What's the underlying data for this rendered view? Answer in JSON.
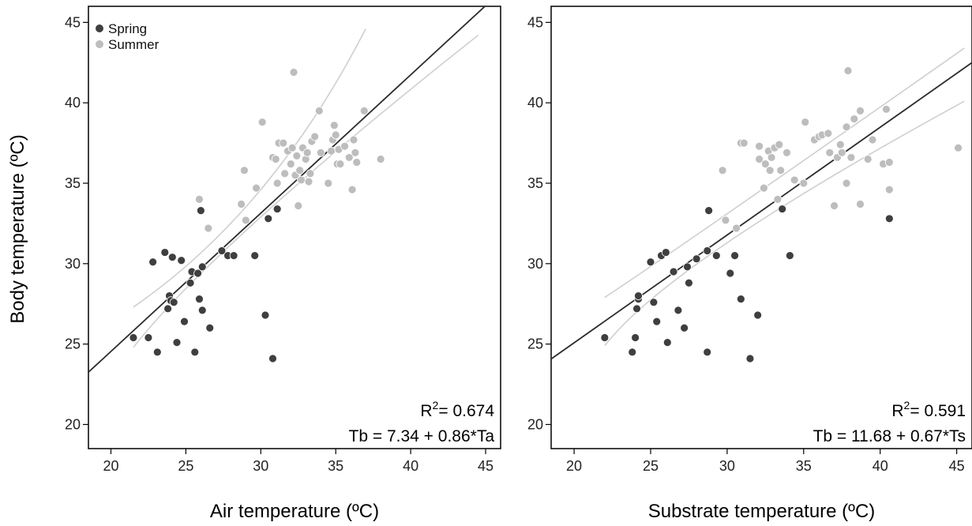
{
  "ylabel": "Body temperature (ºC)",
  "legend": [
    {
      "label": "Spring",
      "color": "#3f3f3f"
    },
    {
      "label": "Summer",
      "color": "#bdbdbd"
    }
  ],
  "colors": {
    "spring": "#3f3f3f",
    "summer": "#bdbdbd",
    "fit": "#2b2b2b",
    "ci": "#cfcfcf"
  },
  "chart_data": [
    {
      "type": "scatter",
      "xlabel": "Air temperature (ºC)",
      "ylabel": "Body temperature (ºC)",
      "xlim": [
        18.5,
        46
      ],
      "ylim": [
        18.5,
        46
      ],
      "xticks": [
        20,
        25,
        30,
        35,
        40,
        45
      ],
      "yticks": [
        20,
        25,
        30,
        35,
        40,
        45
      ],
      "r2_label": "R",
      "r2_sup": "2",
      "r2_value": "= 0.674",
      "equation": "Tb = 7.34 + 0.86*Ta",
      "fit": {
        "intercept": 7.34,
        "slope": 0.86
      },
      "ci_upper": [
        [
          21.5,
          27.3
        ],
        [
          30,
          34.6
        ],
        [
          37,
          44.6
        ]
      ],
      "ci_lower": [
        [
          21.5,
          24.8
        ],
        [
          30,
          32.9
        ],
        [
          44.5,
          44.2
        ]
      ],
      "series": [
        {
          "name": "Spring",
          "points": [
            [
              21.5,
              25.4
            ],
            [
              22.5,
              25.4
            ],
            [
              22.8,
              30.1
            ],
            [
              23.1,
              24.5
            ],
            [
              23.6,
              30.7
            ],
            [
              23.8,
              27.2
            ],
            [
              23.9,
              28
            ],
            [
              24,
              27.7
            ],
            [
              24.1,
              30.4
            ],
            [
              24.2,
              27.6
            ],
            [
              24.4,
              25.1
            ],
            [
              24.7,
              30.2
            ],
            [
              24.9,
              26.4
            ],
            [
              25.3,
              28.8
            ],
            [
              25.4,
              29.5
            ],
            [
              25.6,
              24.5
            ],
            [
              25.8,
              29.4
            ],
            [
              25.9,
              27.8
            ],
            [
              26,
              33.3
            ],
            [
              26.1,
              27.1
            ],
            [
              26.1,
              29.8
            ],
            [
              26.6,
              26
            ],
            [
              27.4,
              30.8
            ],
            [
              27.8,
              30.5
            ],
            [
              28.2,
              30.5
            ],
            [
              29.6,
              30.5
            ],
            [
              30.3,
              26.8
            ],
            [
              30.5,
              32.8
            ],
            [
              30.8,
              24.1
            ],
            [
              31.1,
              33.4
            ]
          ]
        },
        {
          "name": "Summer",
          "points": [
            [
              25.9,
              34
            ],
            [
              26.5,
              32.2
            ],
            [
              28.7,
              33.7
            ],
            [
              28.9,
              35.8
            ],
            [
              29,
              32.7
            ],
            [
              29.7,
              34.7
            ],
            [
              30.1,
              38.8
            ],
            [
              30.8,
              36.6
            ],
            [
              31,
              36.5
            ],
            [
              31.1,
              35
            ],
            [
              31.2,
              37.5
            ],
            [
              31.5,
              37.5
            ],
            [
              31.6,
              35.6
            ],
            [
              31.8,
              37
            ],
            [
              32,
              36.2
            ],
            [
              32.1,
              37.2
            ],
            [
              32.2,
              41.9
            ],
            [
              32.3,
              35.5
            ],
            [
              32.4,
              36.7
            ],
            [
              32.5,
              33.6
            ],
            [
              32.6,
              35.8
            ],
            [
              32.7,
              35.2
            ],
            [
              32.8,
              37.2
            ],
            [
              33,
              36.5
            ],
            [
              33.1,
              36.9
            ],
            [
              33.2,
              35.1
            ],
            [
              33.3,
              35.6
            ],
            [
              33.4,
              37.6
            ],
            [
              33.6,
              37.9
            ],
            [
              33.9,
              39.5
            ],
            [
              34,
              36.9
            ],
            [
              34.5,
              35
            ],
            [
              34.7,
              37
            ],
            [
              34.8,
              37.7
            ],
            [
              34.9,
              38.6
            ],
            [
              35,
              38
            ],
            [
              35.1,
              36.2
            ],
            [
              35.2,
              37.1
            ],
            [
              35.3,
              36.2
            ],
            [
              35.6,
              37.3
            ],
            [
              35.9,
              36.6
            ],
            [
              36.1,
              34.6
            ],
            [
              36.2,
              37.7
            ],
            [
              36.3,
              36.9
            ],
            [
              36.4,
              36.3
            ],
            [
              36.9,
              39.5
            ],
            [
              38,
              36.5
            ]
          ]
        }
      ]
    },
    {
      "type": "scatter",
      "xlabel": "Substrate temperature (ºC)",
      "ylabel": "",
      "xlim": [
        18.5,
        46
      ],
      "ylim": [
        18.5,
        46
      ],
      "xticks": [
        20,
        25,
        30,
        35,
        40,
        45
      ],
      "yticks": [
        20,
        25,
        30,
        35,
        40,
        45
      ],
      "r2_label": "R",
      "r2_sup": "2",
      "r2_value": "= 0.591",
      "equation": "Tb = 11.68 + 0.67*Ts",
      "fit": {
        "intercept": 11.68,
        "slope": 0.67
      },
      "ci_upper": [
        [
          22,
          27.9
        ],
        [
          30,
          33.1
        ],
        [
          45.5,
          43.4
        ]
      ],
      "ci_lower": [
        [
          22,
          24.9
        ],
        [
          30,
          31.3
        ],
        [
          45.5,
          40.1
        ]
      ],
      "series": [
        {
          "name": "Spring",
          "points": [
            [
              22,
              25.4
            ],
            [
              23.8,
              24.5
            ],
            [
              24,
              25.4
            ],
            [
              24.1,
              27.2
            ],
            [
              24.2,
              27.8
            ],
            [
              24.2,
              28
            ],
            [
              25,
              30.1
            ],
            [
              25.2,
              27.6
            ],
            [
              25.4,
              26.4
            ],
            [
              25.7,
              30.5
            ],
            [
              26,
              30.7
            ],
            [
              26.1,
              25.1
            ],
            [
              26.5,
              29.5
            ],
            [
              26.8,
              27.1
            ],
            [
              27.2,
              26
            ],
            [
              27.4,
              29.8
            ],
            [
              27.5,
              28.8
            ],
            [
              28,
              30.3
            ],
            [
              28.7,
              24.5
            ],
            [
              28.7,
              30.8
            ],
            [
              28.8,
              33.3
            ],
            [
              29.3,
              30.5
            ],
            [
              30.2,
              29.4
            ],
            [
              30.5,
              30.5
            ],
            [
              30.9,
              27.8
            ],
            [
              31.5,
              24.1
            ],
            [
              32,
              26.8
            ],
            [
              33.6,
              33.4
            ],
            [
              34.1,
              30.5
            ],
            [
              40.6,
              32.8
            ]
          ]
        },
        {
          "name": "Summer",
          "points": [
            [
              29.7,
              35.8
            ],
            [
              29.9,
              32.7
            ],
            [
              30.6,
              32.2
            ],
            [
              30.9,
              37.5
            ],
            [
              31.1,
              37.5
            ],
            [
              32.1,
              37.3
            ],
            [
              32.1,
              36.5
            ],
            [
              32.4,
              34.7
            ],
            [
              32.5,
              36.2
            ],
            [
              32.7,
              37
            ],
            [
              32.8,
              35.8
            ],
            [
              32.9,
              36.6
            ],
            [
              33.1,
              37.2
            ],
            [
              33.3,
              34
            ],
            [
              33.4,
              37.4
            ],
            [
              33.5,
              35.8
            ],
            [
              33.9,
              36.9
            ],
            [
              34.4,
              35.2
            ],
            [
              35,
              35
            ],
            [
              35.1,
              38.8
            ],
            [
              35.7,
              37.7
            ],
            [
              36,
              37.9
            ],
            [
              36.2,
              38
            ],
            [
              36.6,
              38.1
            ],
            [
              36.7,
              36.9
            ],
            [
              37,
              33.6
            ],
            [
              37.2,
              36.6
            ],
            [
              37.4,
              37.4
            ],
            [
              37.5,
              36.9
            ],
            [
              37.8,
              38.5
            ],
            [
              37.8,
              35
            ],
            [
              37.9,
              42
            ],
            [
              38.1,
              36.6
            ],
            [
              38.3,
              39
            ],
            [
              38.7,
              39.5
            ],
            [
              38.7,
              33.7
            ],
            [
              39.2,
              36.5
            ],
            [
              39.5,
              37.7
            ],
            [
              40.2,
              36.2
            ],
            [
              40.4,
              39.6
            ],
            [
              40.6,
              36.3
            ],
            [
              40.6,
              34.6
            ],
            [
              45.1,
              37.2
            ]
          ]
        }
      ]
    }
  ]
}
